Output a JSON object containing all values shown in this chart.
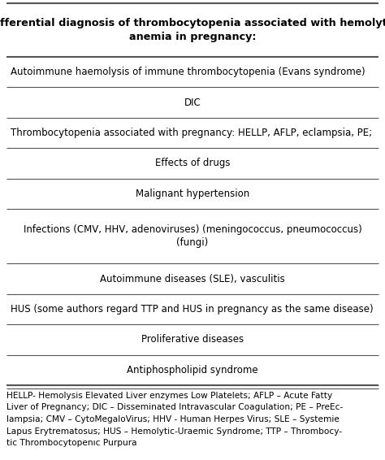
{
  "title": "Differential diagnosis of thrombocytopenia associated with hemolytic\nanemia in pregnancy:",
  "rows": [
    "Autoimmune haemolysis of immune thrombocytopenia (Evans syndrome)",
    "DIC",
    "Thrombocytopenia associated with pregnancy: HELLP, AFLP, eclampsia, PE;",
    "Effects of drugs",
    "Malignant hypertension",
    "Infections (CMV, HHV, adenoviruses) (meningococcus, pneumococcus)\n(fungi)",
    "Autoimmune diseases (SLE), vasculitis",
    "HUS (some authors regard TTP and HUS in pregnancy as the same disease)",
    "Proliferative diseases",
    "Antiphospholipid syndrome"
  ],
  "row_alignments": [
    "left",
    "center",
    "left",
    "center",
    "center",
    "center",
    "center",
    "left",
    "center",
    "center"
  ],
  "footnote_lines": [
    "HELLP- Hemolysis Elevated Liver enzymes Low Platelets; AFLP – Acute Fatty",
    "Liver of Pregnancy; DIC – Disseminated Intravascular Coagulation; PE – PreEc-",
    "lampsia; CMV – CytoMegaloVirus; HHV - Human Herpes Virus; SLE – Systemie",
    "Lapus Erytrematosus; HUS – Hemolytic-Uraemic Syndrome; TTP – Thrombocy-",
    "tic Thrombocytopenıc Purpura"
  ],
  "bg_color": "#ffffff",
  "text_color": "#000000",
  "line_color": "#555555",
  "title_fontsize": 9.2,
  "row_fontsize": 8.5,
  "footnote_fontsize": 7.6,
  "fig_width": 4.74,
  "fig_height": 5.66,
  "dpi": 100
}
